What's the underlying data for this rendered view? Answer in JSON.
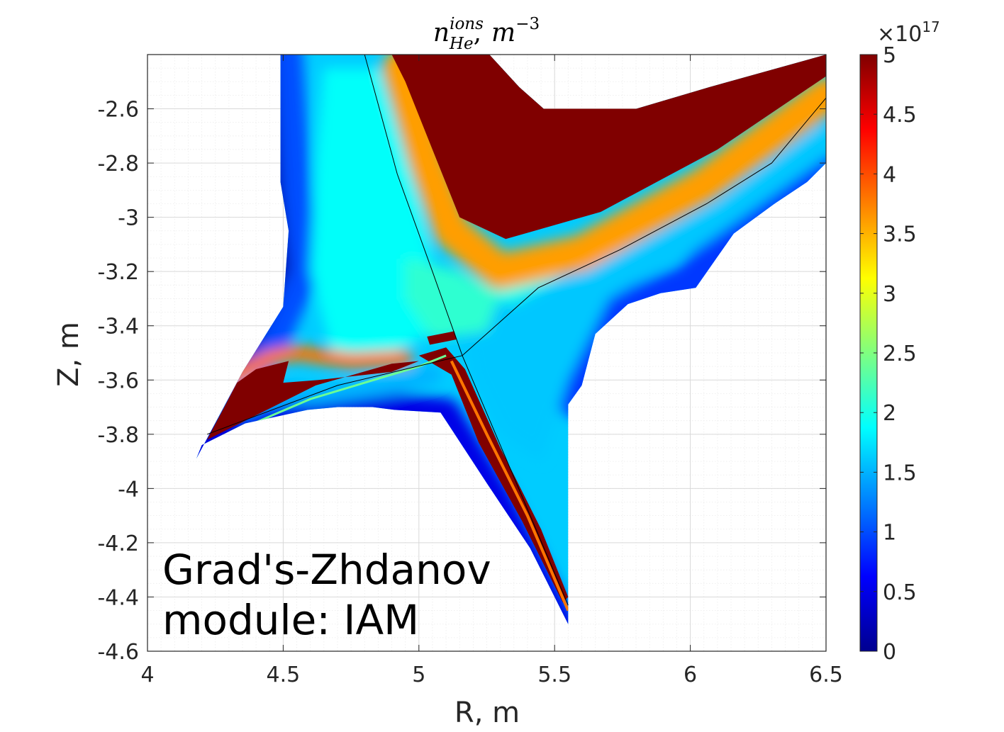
{
  "chart_data": {
    "type": "heatmap",
    "title": {
      "base": "n",
      "superscript": "ions",
      "subscript": "He",
      "separator": ",",
      "unit_base": "m",
      "unit_exponent": "−3"
    },
    "xlabel": "R, m",
    "ylabel": "Z, m",
    "xlim": [
      4,
      6.5
    ],
    "ylim": [
      -4.6,
      -2.4
    ],
    "x_ticks": [
      {
        "value": 4,
        "label": "4"
      },
      {
        "value": 4.5,
        "label": "4.5"
      },
      {
        "value": 5,
        "label": "5"
      },
      {
        "value": 5.5,
        "label": "5.5"
      },
      {
        "value": 6,
        "label": "6"
      },
      {
        "value": 6.5,
        "label": "6.5"
      }
    ],
    "y_ticks": [
      {
        "value": -2.6,
        "label": "-2.6"
      },
      {
        "value": -2.8,
        "label": "-2.8"
      },
      {
        "value": -3,
        "label": "-3"
      },
      {
        "value": -3.2,
        "label": "-3.2"
      },
      {
        "value": -3.4,
        "label": "-3.4"
      },
      {
        "value": -3.6,
        "label": "-3.6"
      },
      {
        "value": -3.8,
        "label": "-3.8"
      },
      {
        "value": -4,
        "label": "-4"
      },
      {
        "value": -4.2,
        "label": "-4.2"
      },
      {
        "value": -4.4,
        "label": "-4.4"
      },
      {
        "value": -4.6,
        "label": "-4.6"
      }
    ],
    "grid": true,
    "minor_grid": true,
    "colorbar": {
      "colormap": "jet",
      "range": [
        0,
        5
      ],
      "multiplier": "×10",
      "multiplier_exponent": "17",
      "ticks": [
        {
          "value": 0,
          "label": "0"
        },
        {
          "value": 0.5,
          "label": "0.5"
        },
        {
          "value": 1,
          "label": "1"
        },
        {
          "value": 1.5,
          "label": "1.5"
        },
        {
          "value": 2,
          "label": "2"
        },
        {
          "value": 2.5,
          "label": "2.5"
        },
        {
          "value": 3,
          "label": "3"
        },
        {
          "value": 3.5,
          "label": "3.5"
        },
        {
          "value": 4,
          "label": "4"
        },
        {
          "value": 4.5,
          "label": "4.5"
        },
        {
          "value": 5,
          "label": "5"
        }
      ]
    },
    "domain_boundary": [
      [
        4.8,
        -2.4
      ],
      [
        5.26,
        -2.4
      ],
      [
        5.37,
        -2.52
      ],
      [
        5.46,
        -2.6
      ],
      [
        5.56,
        -2.6
      ],
      [
        5.8,
        -2.6
      ],
      [
        6.07,
        -2.52
      ],
      [
        6.5,
        -2.4
      ],
      [
        6.5,
        -2.8
      ],
      [
        6.43,
        -2.87
      ],
      [
        6.31,
        -2.95
      ],
      [
        6.16,
        -3.06
      ],
      [
        6.02,
        -3.26
      ],
      [
        5.89,
        -3.28
      ],
      [
        5.77,
        -3.32
      ],
      [
        5.65,
        -3.43
      ],
      [
        5.6,
        -3.62
      ],
      [
        5.55,
        -3.69
      ],
      [
        5.55,
        -4.5
      ],
      [
        5.41,
        -4.22
      ],
      [
        5.25,
        -3.98
      ],
      [
        5.08,
        -3.72
      ],
      [
        4.91,
        -3.71
      ],
      [
        4.83,
        -3.7
      ],
      [
        4.7,
        -3.7
      ],
      [
        4.59,
        -3.71
      ],
      [
        4.36,
        -3.76
      ],
      [
        4.2,
        -3.84
      ],
      [
        4.18,
        -3.89
      ],
      [
        4.35,
        -3.57
      ],
      [
        4.5,
        -3.33
      ],
      [
        4.52,
        -3.05
      ],
      [
        4.49,
        -2.87
      ],
      [
        4.49,
        -2.4
      ]
    ],
    "density_regions": [
      {
        "value": 5.0,
        "points": [
          [
            4.9,
            -2.4
          ],
          [
            5.26,
            -2.4
          ],
          [
            5.37,
            -2.52
          ],
          [
            5.46,
            -2.6
          ],
          [
            5.8,
            -2.6
          ],
          [
            6.07,
            -2.52
          ],
          [
            6.5,
            -2.4
          ],
          [
            6.5,
            -2.48
          ],
          [
            6.1,
            -2.75
          ],
          [
            5.67,
            -2.98
          ],
          [
            5.32,
            -3.08
          ],
          [
            5.15,
            -3.0
          ],
          [
            5.05,
            -2.75
          ],
          [
            4.95,
            -2.5
          ]
        ]
      },
      {
        "value": 5.0,
        "points": [
          [
            4.22,
            -3.82
          ],
          [
            4.33,
            -3.61
          ],
          [
            4.4,
            -3.56
          ],
          [
            4.52,
            -3.53
          ],
          [
            4.5,
            -3.61
          ],
          [
            4.63,
            -3.6
          ],
          [
            4.9,
            -3.57
          ],
          [
            5.0,
            -3.53
          ],
          [
            4.9,
            -3.54
          ],
          [
            4.62,
            -3.62
          ],
          [
            4.44,
            -3.71
          ]
        ]
      },
      {
        "value": 5.0,
        "points": [
          [
            5.0,
            -3.51
          ],
          [
            5.1,
            -3.48
          ],
          [
            5.17,
            -3.56
          ],
          [
            5.3,
            -3.85
          ],
          [
            5.45,
            -4.15
          ],
          [
            5.55,
            -4.4
          ],
          [
            5.53,
            -4.42
          ],
          [
            5.38,
            -4.12
          ],
          [
            5.22,
            -3.83
          ],
          [
            5.12,
            -3.58
          ]
        ]
      },
      {
        "value": 5.0,
        "points": [
          [
            5.03,
            -3.44
          ],
          [
            5.13,
            -3.42
          ],
          [
            5.14,
            -3.45
          ],
          [
            5.04,
            -3.47
          ]
        ]
      }
    ],
    "separatrix_lines": [
      [
        [
          4.8,
          -2.4
        ],
        [
          4.92,
          -2.84
        ],
        [
          5.05,
          -3.2
        ],
        [
          5.16,
          -3.51
        ],
        [
          5.55,
          -4.43
        ]
      ],
      [
        [
          4.22,
          -3.8
        ],
        [
          4.7,
          -3.62
        ],
        [
          5.16,
          -3.51
        ]
      ],
      [
        [
          5.16,
          -3.51
        ],
        [
          5.44,
          -3.26
        ],
        [
          5.74,
          -3.12
        ],
        [
          6.06,
          -2.95
        ],
        [
          6.3,
          -2.8
        ],
        [
          6.5,
          -2.56
        ]
      ]
    ],
    "annotation": [
      "Grad's-Zhdanov",
      "module: IAM"
    ]
  }
}
